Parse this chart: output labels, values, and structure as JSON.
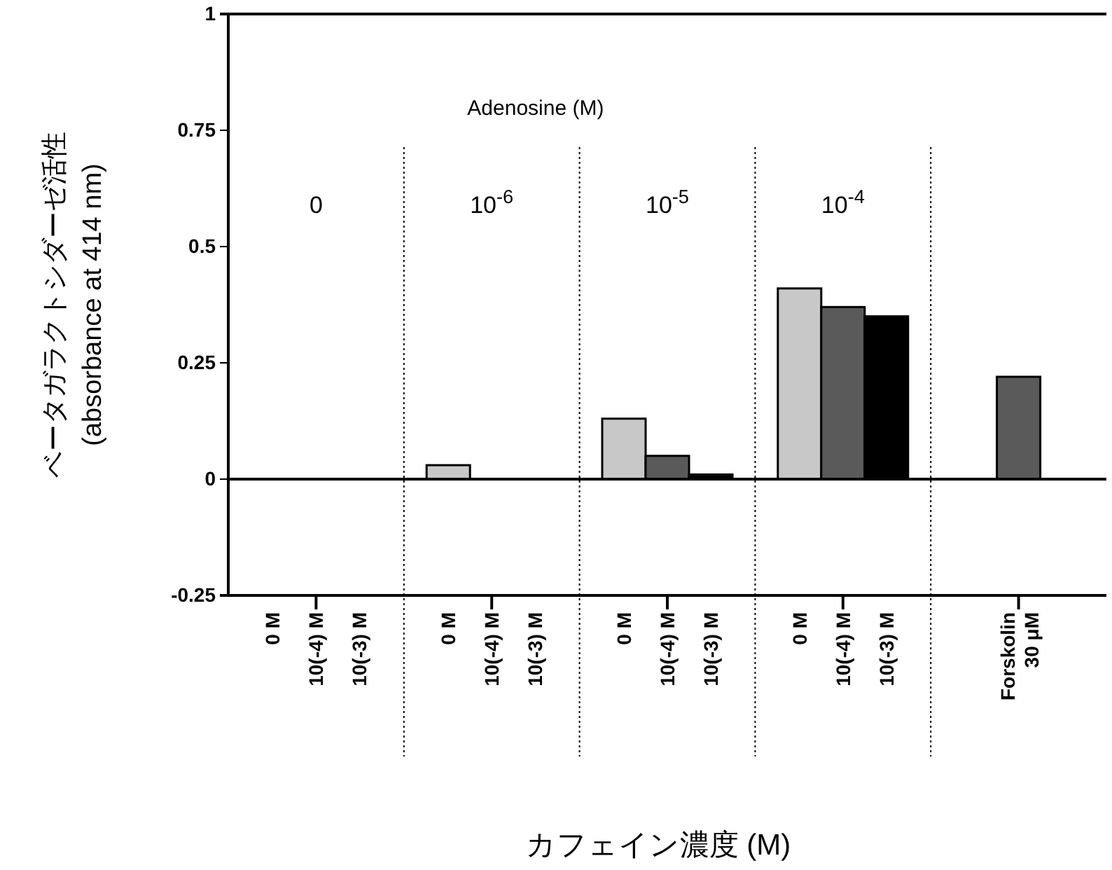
{
  "chart_data": {
    "type": "bar",
    "xlabel": "カフェイン濃度 (M)",
    "ylabel": "ベータガラクトシダーゼ活性 (absorbance at 414 nm)",
    "categories": [
      "0 M",
      "10(-4) M",
      "10(-3) M",
      "0 M",
      "10(-4) M",
      "10(-3) M",
      "0 M",
      "10(-4) M",
      "10(-3) M",
      "0 M",
      "10(-4) M",
      "10(-3) M",
      "Forskolin 30 μM"
    ],
    "values": [
      0,
      0,
      0,
      0.03,
      0,
      0,
      0.13,
      0.05,
      0.01,
      0.41,
      0.37,
      0.35,
      0.22
    ],
    "colors": [
      "#c8c8c8",
      "#5a5a5a",
      "#000000",
      "#c8c8c8",
      "#5a5a5a",
      "#000000",
      "#c8c8c8",
      "#5a5a5a",
      "#000000",
      "#c8c8c8",
      "#5a5a5a",
      "#000000",
      "#5a5a5a"
    ],
    "ylim": [
      -0.25,
      1
    ],
    "yticks": [
      -0.25,
      0,
      0.25,
      0.5,
      0.75,
      1
    ],
    "annotations": [
      "Adenosine (M)",
      "0",
      "10$^{-6}$",
      "10$^{-5}$",
      "10$^{-4}$"
    ]
  }
}
